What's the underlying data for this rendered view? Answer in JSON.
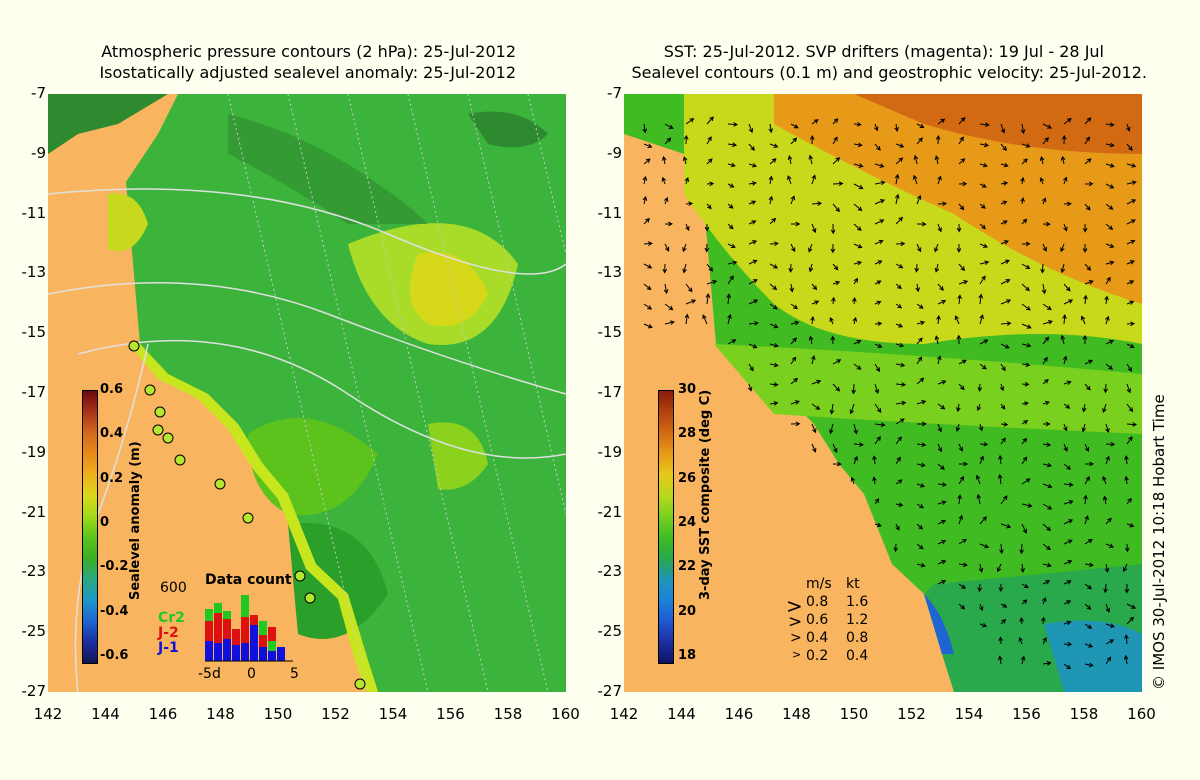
{
  "left": {
    "title_line1": "Atmospheric pressure contours (2 hPa): 25-Jul-2012",
    "title_line2": "Isostatically adjusted sealevel anomaly: 25-Jul-2012",
    "colorbar": {
      "label": "Sealevel anomaly (m)",
      "ticks": [
        "0.6",
        "0.4",
        "0.2",
        "0",
        "-0.2",
        "-0.4",
        "-0.6"
      ],
      "colors": [
        "#6b0a0a",
        "#a8321a",
        "#d2691e",
        "#e88a1a",
        "#f0b01e",
        "#d8d81a",
        "#a0dc1a",
        "#5cc21c",
        "#3cae24",
        "#2aa880",
        "#1e96c8",
        "#1e64d2",
        "#1e2ea0",
        "#101650"
      ]
    },
    "data_count": {
      "title": "Data count",
      "max_label": "600",
      "series": [
        {
          "name": "Cr2",
          "color": "#22c822"
        },
        {
          "name": "J-2",
          "color": "#dd1111"
        },
        {
          "name": "J-1",
          "color": "#1111dd"
        }
      ],
      "x_labels": [
        "-5d",
        "0",
        "5"
      ]
    }
  },
  "right": {
    "title_line1": "SST: 25-Jul-2012. SVP drifters (magenta): 19 Jul - 28 Jul",
    "title_line2": "Sealevel contours (0.1 m) and geostrophic velocity: 25-Jul-2012.",
    "colorbar": {
      "label": "3-day SST composite (deg C)",
      "ticks": [
        "30",
        "28",
        "26",
        "24",
        "22",
        "20",
        "18"
      ],
      "colors": [
        "#8a1a0a",
        "#b0420e",
        "#d26a14",
        "#e69a18",
        "#e6c81a",
        "#b8d81c",
        "#7ad01e",
        "#40bc22",
        "#2aa84c",
        "#1e96b4",
        "#1e82d8",
        "#1e5ad2",
        "#1e2ea0",
        "#0c1464"
      ]
    },
    "speed_legend": {
      "header_ms": "m/s",
      "header_kt": "kt",
      "rows": [
        {
          "ms": "0.8",
          "kt": "1.6"
        },
        {
          "ms": "0.6",
          "kt": "1.2"
        },
        {
          "ms": "0.4",
          "kt": "0.8"
        },
        {
          "ms": "0.2",
          "kt": "0.4"
        }
      ]
    }
  },
  "lat_labels": [
    "-7",
    "-9",
    "-11",
    "-13",
    "-15",
    "-17",
    "-19",
    "-21",
    "-23",
    "-25",
    "-27"
  ],
  "lon_labels": [
    "142",
    "144",
    "146",
    "148",
    "150",
    "152",
    "154",
    "156",
    "158",
    "160"
  ],
  "credit": "© IMOS 30-Jul-2012 10:18 Hobart Time",
  "colors": {
    "land": "#f8b45e",
    "background": "#fffff0",
    "sla_base": "#3cb43c",
    "sst_warm": "#e87a14"
  }
}
